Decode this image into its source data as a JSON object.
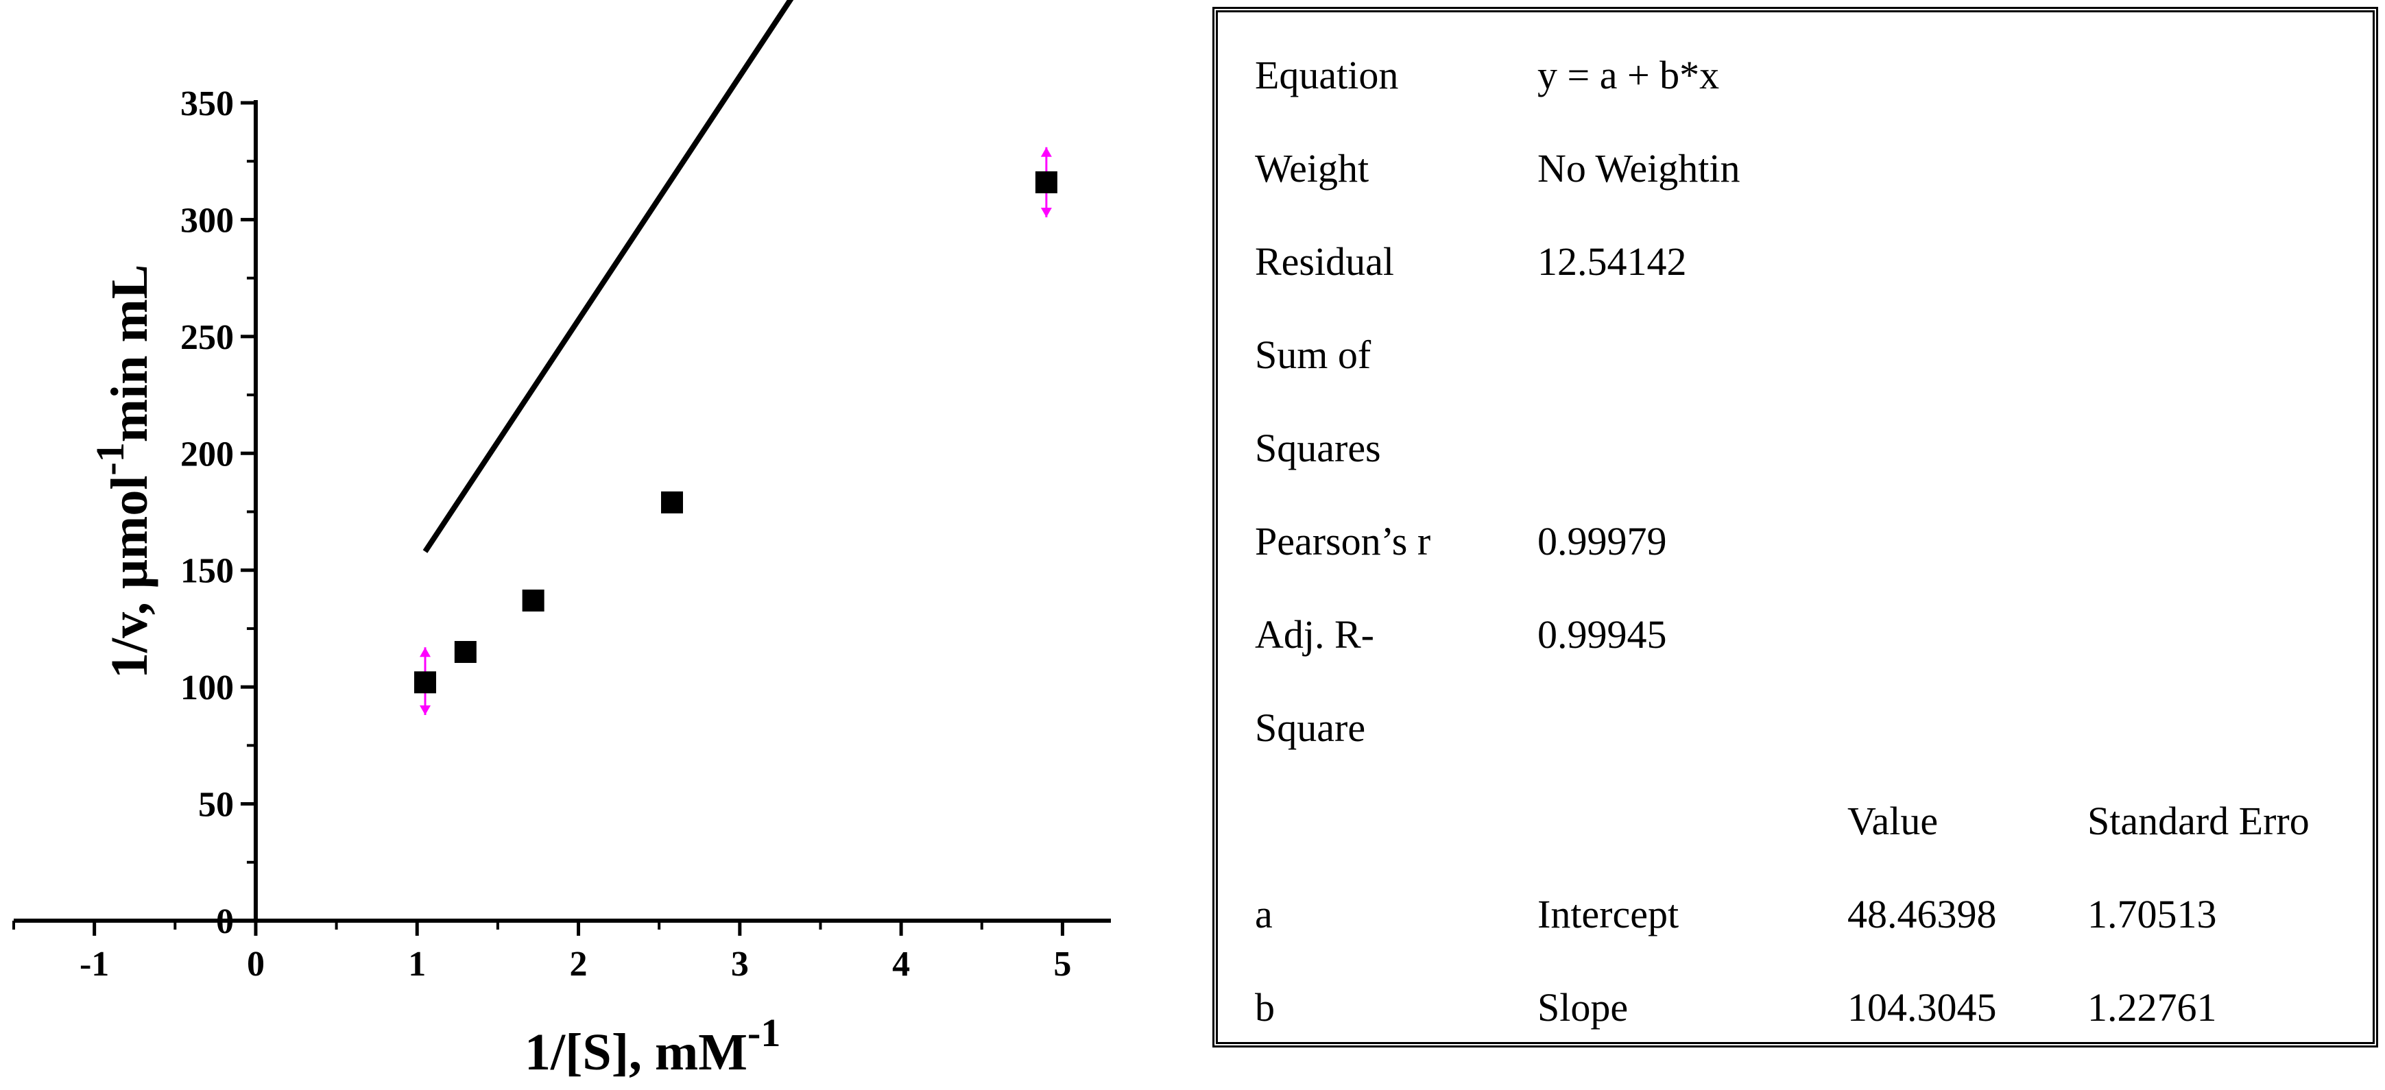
{
  "chart_data": {
    "type": "scatter",
    "title": "",
    "xlabel": "1/[S], mM",
    "xlabel_sup": "-1",
    "ylabel_prefix": "1/v, μmol",
    "ylabel_sup": "-1",
    "ylabel_suffix": "min mL",
    "xlim": [
      -1.5,
      5.3
    ],
    "ylim": [
      0,
      350
    ],
    "xticks": [
      -1,
      0,
      1,
      2,
      3,
      4,
      5
    ],
    "yticks": [
      0,
      50,
      100,
      150,
      200,
      250,
      300,
      350
    ],
    "grid": false,
    "series": [
      {
        "x": [
          1.05,
          1.3,
          1.72,
          2.58,
          4.9
        ],
        "y": [
          102,
          115,
          137,
          179,
          316
        ]
      }
    ],
    "fit": {
      "intercept": 48.46398,
      "slope": 104.3045,
      "x_range": [
        1.05,
        4.9
      ]
    },
    "error_markers": [
      {
        "x": 1.05,
        "y": 102,
        "y_low": 88,
        "y_high": 117
      },
      {
        "x": 4.9,
        "y": 316,
        "y_low": 301,
        "y_high": 331
      }
    ],
    "colors": {
      "points": "#000000",
      "line": "#000000",
      "error": "#ff00ff"
    }
  },
  "fit_table": {
    "rows": [
      {
        "c1": "Equation",
        "c2": "y = a + b*x",
        "c3": "",
        "c4": ""
      },
      {
        "c1": "Weight",
        "c2": "No Weightin",
        "c3": "",
        "c4": ""
      },
      {
        "c1": "Residual",
        "c2": "12.54142",
        "c3": "",
        "c4": ""
      },
      {
        "c1": "Sum of",
        "c2": "",
        "c3": "",
        "c4": ""
      },
      {
        "c1": "Squares",
        "c2": "",
        "c3": "",
        "c4": ""
      },
      {
        "c1": "Pearson’s r",
        "c2": "0.99979",
        "c3": "",
        "c4": ""
      },
      {
        "c1": "Adj. R-",
        "c2": "0.99945",
        "c3": "",
        "c4": ""
      },
      {
        "c1": "Square",
        "c2": "",
        "c3": "",
        "c4": ""
      },
      {
        "c1": "",
        "c2": "",
        "c3": "Value",
        "c4": "Standard Erro"
      },
      {
        "c1": "a",
        "c2": "Intercept",
        "c3": "48.46398",
        "c4": "1.70513"
      },
      {
        "c1": "b",
        "c2": "Slope",
        "c3": "104.3045",
        "c4": "1.22761"
      }
    ]
  }
}
